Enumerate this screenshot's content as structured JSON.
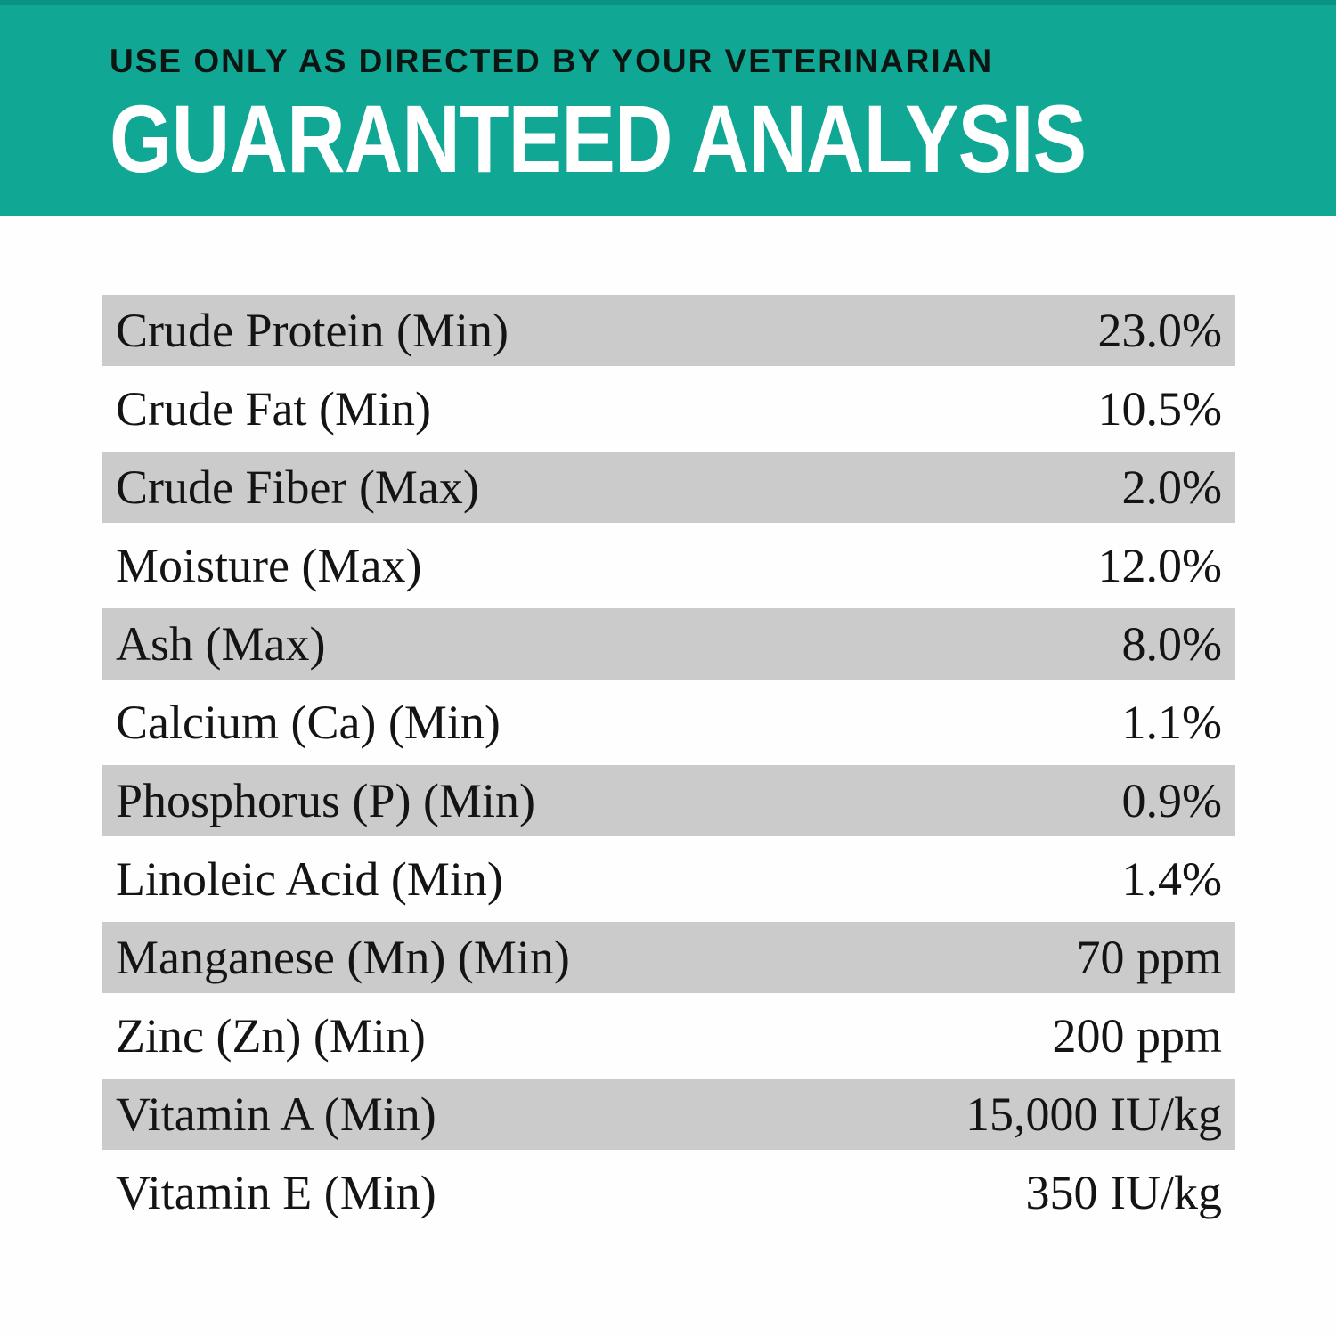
{
  "header": {
    "disclaimer": "USE ONLY AS DIRECTED BY YOUR VETERINARIAN",
    "title": "GUARANTEED ANALYSIS"
  },
  "table": {
    "rows": [
      {
        "label": "Crude Protein (Min)",
        "value": "23.0%"
      },
      {
        "label": "Crude Fat (Min)",
        "value": "10.5%"
      },
      {
        "label": "Crude Fiber (Max)",
        "value": "2.0%"
      },
      {
        "label": "Moisture (Max)",
        "value": "12.0%"
      },
      {
        "label": "Ash (Max)",
        "value": "8.0%"
      },
      {
        "label": "Calcium (Ca) (Min)",
        "value": "1.1%"
      },
      {
        "label": "Phosphorus (P) (Min)",
        "value": "0.9%"
      },
      {
        "label": "Linoleic Acid (Min)",
        "value": "1.4%"
      },
      {
        "label": "Manganese (Mn) (Min)",
        "value": "70 ppm"
      },
      {
        "label": "Zinc (Zn) (Min)",
        "value": "200 ppm"
      },
      {
        "label": "Vitamin A (Min)",
        "value": "15,000 IU/kg"
      },
      {
        "label": "Vitamin E (Min)",
        "value": "350 IU/kg"
      }
    ]
  },
  "colors": {
    "header_background": "#10A795",
    "header_top_strip": "#0A9383",
    "row_stripe": "#CBCBCB",
    "page_background": "#FEFEFE",
    "text": "#141414",
    "title": "#FFFFFF",
    "disclaimer": "#0B1512"
  }
}
